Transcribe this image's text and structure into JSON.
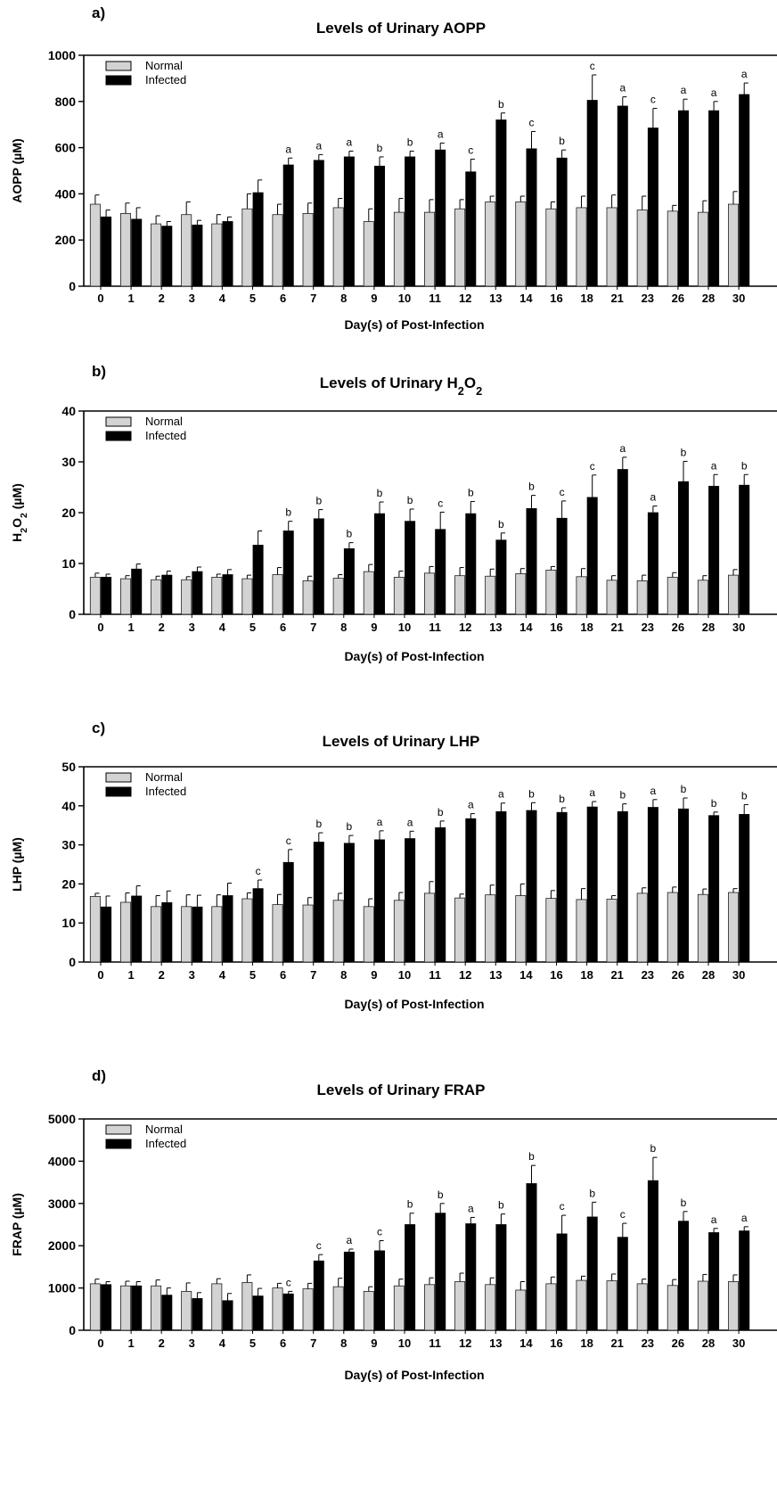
{
  "categories": [
    "0",
    "1",
    "2",
    "3",
    "4",
    "5",
    "6",
    "7",
    "8",
    "9",
    "10",
    "11",
    "12",
    "13",
    "14",
    "16",
    "18",
    "21",
    "23",
    "26",
    "28",
    "30"
  ],
  "legend": {
    "normal": "Normal",
    "infected": "Infected"
  },
  "colors": {
    "normal": "#d3d3d3",
    "infected": "#000000"
  },
  "chart_data": [
    {
      "type": "bar",
      "panel_label": "a)",
      "title": "Levels of Urinary AOPP",
      "ylabel": "AOPP (µM)",
      "xlabel": "Day(s) of Post-Infection",
      "ylim": [
        0,
        1000
      ],
      "yticks": [
        0,
        200,
        400,
        600,
        800,
        1000
      ],
      "series": [
        {
          "name": "Normal",
          "values": [
            355,
            315,
            270,
            310,
            270,
            335,
            310,
            315,
            340,
            280,
            320,
            320,
            335,
            365,
            365,
            335,
            340,
            340,
            330,
            325,
            320,
            355
          ],
          "err": [
            40,
            45,
            35,
            55,
            40,
            65,
            45,
            45,
            40,
            55,
            60,
            55,
            40,
            25,
            25,
            30,
            50,
            55,
            60,
            25,
            50,
            55
          ]
        },
        {
          "name": "Infected",
          "values": [
            300,
            290,
            260,
            265,
            280,
            405,
            525,
            545,
            560,
            520,
            560,
            590,
            495,
            720,
            595,
            555,
            805,
            780,
            685,
            760,
            760,
            830
          ],
          "err": [
            30,
            50,
            20,
            20,
            20,
            55,
            30,
            25,
            25,
            40,
            25,
            30,
            55,
            30,
            75,
            35,
            110,
            40,
            85,
            50,
            40,
            50
          ]
        }
      ],
      "letters": [
        "",
        "",
        "",
        "",
        "",
        "",
        "a",
        "a",
        "a",
        "b",
        "b",
        "a",
        "c",
        "b",
        "c",
        "b",
        "c",
        "a",
        "c",
        "a",
        "a",
        "a"
      ]
    },
    {
      "type": "bar",
      "panel_label": "b)",
      "title": "Levels of Urinary H2O2",
      "ylabel": "H2O2 (µM)",
      "xlabel": "Day(s) of Post-Infection",
      "ylim": [
        0,
        40
      ],
      "yticks": [
        0,
        10,
        20,
        30,
        40
      ],
      "series": [
        {
          "name": "Normal",
          "values": [
            7.3,
            7.0,
            6.8,
            6.8,
            7.3,
            7.0,
            7.8,
            6.6,
            7.1,
            8.4,
            7.3,
            8.1,
            7.6,
            7.5,
            8.0,
            8.7,
            7.4,
            6.7,
            6.6,
            7.3,
            6.7,
            7.7
          ],
          "err": [
            0.8,
            0.6,
            0.7,
            0.6,
            0.6,
            0.7,
            1.4,
            0.9,
            0.7,
            1.4,
            1.2,
            1.3,
            1.6,
            1.4,
            1.0,
            0.7,
            1.6,
            0.9,
            1.1,
            0.9,
            0.9,
            1.1
          ]
        },
        {
          "name": "Infected",
          "values": [
            7.3,
            8.9,
            7.7,
            8.4,
            7.8,
            13.6,
            16.4,
            18.8,
            12.9,
            19.8,
            18.3,
            16.7,
            19.8,
            14.6,
            20.8,
            18.9,
            23.0,
            28.5,
            20.0,
            26.1,
            25.2,
            25.4
          ],
          "err": [
            0.6,
            1.0,
            0.8,
            0.9,
            1.0,
            2.8,
            1.9,
            1.8,
            1.2,
            2.3,
            2.4,
            3.4,
            2.4,
            1.4,
            2.6,
            3.4,
            4.4,
            2.4,
            1.3,
            4.0,
            2.3,
            2.1
          ]
        }
      ],
      "letters": [
        "",
        "",
        "",
        "",
        "",
        "",
        "b",
        "b",
        "b",
        "b",
        "b",
        "c",
        "b",
        "b",
        "b",
        "c",
        "c",
        "a",
        "a",
        "b",
        "a",
        "b"
      ]
    },
    {
      "type": "bar",
      "panel_label": "c)",
      "title": "Levels of Urinary LHP",
      "ylabel": "LHP (µM)",
      "xlabel": "Day(s) of Post-Infection",
      "ylim": [
        0,
        50
      ],
      "yticks": [
        0,
        10,
        20,
        30,
        40,
        50
      ],
      "series": [
        {
          "name": "Normal",
          "values": [
            16.8,
            15.3,
            14.2,
            14.2,
            14.2,
            16.2,
            14.7,
            14.6,
            15.8,
            14.2,
            15.8,
            17.6,
            16.4,
            17.2,
            17.0,
            16.3,
            16.0,
            16.1,
            17.6,
            17.8,
            17.3,
            17.8
          ],
          "err": [
            0.8,
            2.4,
            2.8,
            3.0,
            3.0,
            1.5,
            2.6,
            1.9,
            1.8,
            2.0,
            2.0,
            3.0,
            1.0,
            2.5,
            3.0,
            2.0,
            2.8,
            0.9,
            1.4,
            1.4,
            1.4,
            1.0
          ]
        },
        {
          "name": "Infected",
          "values": [
            14.1,
            16.9,
            15.2,
            14.1,
            17.0,
            18.8,
            25.5,
            30.7,
            30.4,
            31.3,
            31.6,
            34.4,
            36.7,
            38.5,
            38.8,
            38.3,
            39.7,
            38.5,
            39.6,
            39.2,
            37.5,
            37.8
          ],
          "err": [
            2.8,
            2.6,
            3.0,
            3.0,
            3.2,
            2.2,
            3.3,
            2.4,
            2.0,
            2.3,
            1.9,
            1.7,
            1.3,
            2.2,
            2.0,
            1.2,
            1.4,
            2.0,
            2.0,
            2.8,
            0.9,
            2.5
          ]
        }
      ],
      "letters": [
        "",
        "",
        "",
        "",
        "",
        "c",
        "c",
        "b",
        "b",
        "a",
        "a",
        "b",
        "a",
        "a",
        "b",
        "b",
        "a",
        "b",
        "a",
        "b",
        "b",
        "b"
      ]
    },
    {
      "type": "bar",
      "panel_label": "d)",
      "title": "Levels of Urinary FRAP",
      "ylabel": "FRAP (µM)",
      "xlabel": "Day(s) of Post-Infection",
      "ylim": [
        0,
        5000
      ],
      "yticks": [
        0,
        1000,
        2000,
        3000,
        4000,
        5000
      ],
      "series": [
        {
          "name": "Normal",
          "values": [
            1100,
            1050,
            1050,
            920,
            1100,
            1130,
            1000,
            980,
            1030,
            920,
            1050,
            1080,
            1150,
            1080,
            950,
            1100,
            1180,
            1170,
            1100,
            1060,
            1160,
            1150
          ],
          "err": [
            110,
            110,
            140,
            200,
            120,
            180,
            110,
            130,
            200,
            110,
            160,
            160,
            200,
            160,
            200,
            160,
            100,
            160,
            110,
            140,
            160,
            160
          ]
        },
        {
          "name": "Infected",
          "values": [
            1080,
            1050,
            830,
            750,
            700,
            810,
            860,
            1640,
            1850,
            1880,
            2500,
            2770,
            2520,
            2500,
            3470,
            2280,
            2680,
            2200,
            3540,
            2580,
            2310,
            2350
          ],
          "err": [
            70,
            100,
            170,
            140,
            170,
            180,
            60,
            150,
            70,
            240,
            270,
            230,
            150,
            250,
            430,
            440,
            350,
            330,
            550,
            230,
            100,
            100
          ]
        }
      ],
      "letters": [
        "",
        "",
        "",
        "",
        "",
        "",
        "c",
        "c",
        "a",
        "c",
        "b",
        "b",
        "a",
        "b",
        "b",
        "c",
        "b",
        "c",
        "b",
        "b",
        "a",
        "a"
      ]
    }
  ]
}
